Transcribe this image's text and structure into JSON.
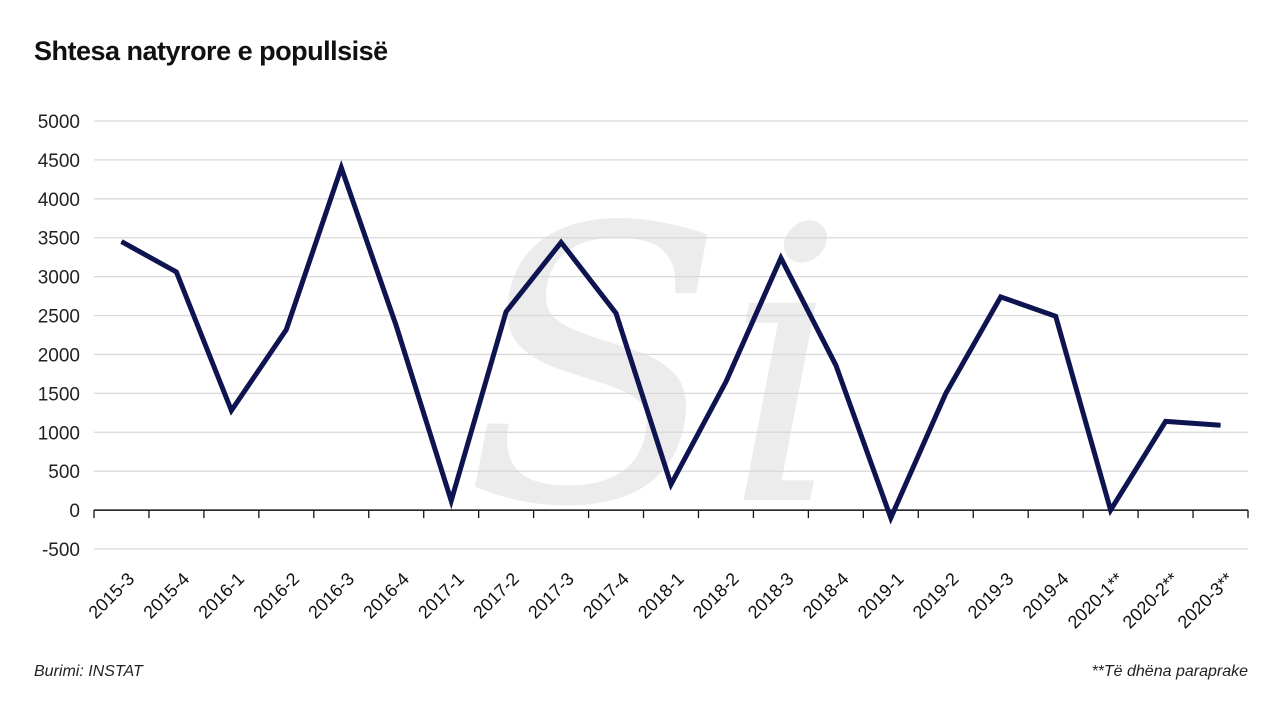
{
  "title": "Shtesa natyrore e popullsisë",
  "source": "Burimi: INSTAT",
  "note": "**Të dhëna paraprake",
  "watermark": "Si",
  "colors": {
    "line": "#0d1450",
    "grid": "#d9d9d9",
    "axis": "#111111",
    "watermark": "#ececec"
  },
  "chart_data": {
    "type": "line",
    "title": "Shtesa natyrore e popullsisë",
    "categories": [
      "2015-3",
      "2015-4",
      "2016-1",
      "2016-2",
      "2016-3",
      "2016-4",
      "2017-1",
      "2017-2",
      "2017-3",
      "2017-4",
      "2018-1",
      "2018-2",
      "2018-3",
      "2018-4",
      "2019-1",
      "2019-2",
      "2019-3",
      "2019-4",
      "2020-1**",
      "2020-2**",
      "2020-3**"
    ],
    "series": [
      {
        "values": [
          3450,
          3060,
          1280,
          2320,
          4400,
          2370,
          120,
          2550,
          3440,
          2530,
          330,
          1650,
          3240,
          1860,
          -100,
          1500,
          2740,
          2490,
          0,
          1140,
          1090
        ]
      }
    ],
    "yticks": [
      -500,
      0,
      500,
      1000,
      1500,
      2000,
      2500,
      3000,
      3500,
      4000,
      4500,
      5000
    ],
    "ylim": [
      -500,
      5000
    ],
    "grid": true,
    "legend": "none"
  }
}
